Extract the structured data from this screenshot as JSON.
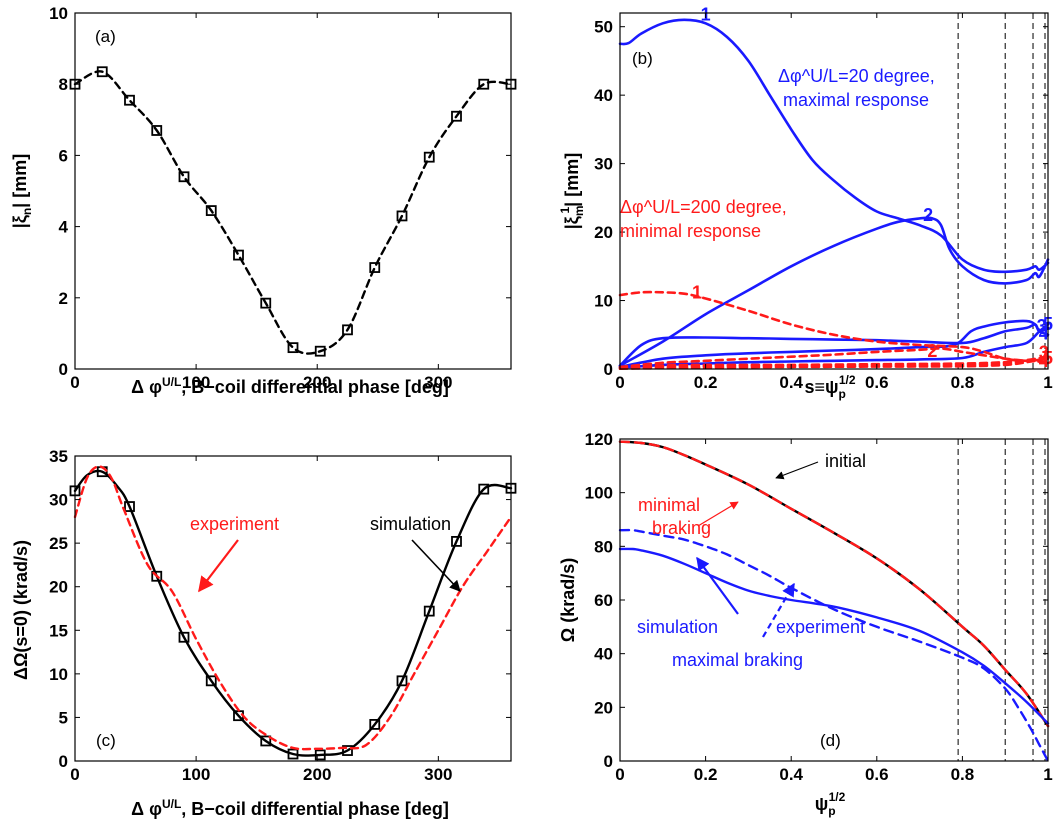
{
  "colors": {
    "blue": "#1a1aff",
    "red": "#ff1a1a",
    "black": "#000000"
  },
  "chart_data": [
    {
      "id": "a",
      "type": "line",
      "panel_label": "(a)",
      "xlabel": "Δ φ^U/L, B−coil differential phase [deg]",
      "xlabel_parts": {
        "prefix": "Δ φ",
        "sup": "U/L",
        "suffix": ", B−coil differential phase [deg]"
      },
      "ylabel": "|ξn| [mm]",
      "ylabel_parts": {
        "prefix": "|ξ",
        "sub": "n",
        "suffix": "| [mm]"
      },
      "xlim": [
        0,
        360
      ],
      "ylim": [
        0,
        10
      ],
      "xticks": [
        0,
        100,
        200,
        300
      ],
      "yticks": [
        0,
        2,
        4,
        6,
        8,
        10
      ],
      "grid": false,
      "series": [
        {
          "line": "dashed",
          "color": "#000000",
          "marker": "square",
          "x": [
            0,
            22.5,
            45,
            67.5,
            90,
            112.5,
            135,
            157.5,
            180,
            202.5,
            225,
            247.5,
            270,
            292.5,
            315,
            337.5,
            360
          ],
          "y": [
            8.0,
            8.35,
            7.55,
            6.7,
            5.4,
            4.45,
            3.2,
            1.85,
            0.6,
            0.5,
            1.1,
            2.85,
            4.3,
            5.95,
            7.1,
            8.0,
            8.0
          ],
          "marker_x": [
            0,
            22.5,
            45,
            67.5,
            90,
            112.5,
            135,
            157.5,
            180,
            202.5,
            225,
            247.5,
            270,
            292.5,
            315,
            337.5,
            360
          ]
        }
      ]
    },
    {
      "id": "b",
      "type": "line",
      "panel_label": "(b)",
      "xlabel": "s≡ψp^1/2",
      "xlabel_parts": {
        "prefix": "s≡ψ",
        "sub": "p",
        "sup": "1/2"
      },
      "ylabel": "|ξ1m| [mm]",
      "ylabel_parts": {
        "prefix": "|ξ",
        "sub": "m",
        "sup": "1",
        "suffix": "| [mm]"
      },
      "xlim": [
        0,
        1
      ],
      "ylim": [
        0,
        52
      ],
      "xticks": [
        0,
        0.2,
        0.4,
        0.6,
        0.8,
        1
      ],
      "xticklabels": [
        "0",
        "0.2",
        "0.4",
        "0.6",
        "0.8",
        "1"
      ],
      "yticks": [
        0,
        10,
        20,
        30,
        40,
        50
      ],
      "vlines": [
        0.79,
        0.9,
        0.965,
        0.993
      ],
      "grid": false,
      "series": [
        {
          "label": "1",
          "color": "#1a1aff",
          "line": "solid",
          "x": [
            0,
            0.02,
            0.05,
            0.1,
            0.15,
            0.2,
            0.25,
            0.3,
            0.35,
            0.4,
            0.45,
            0.5,
            0.55,
            0.6,
            0.65,
            0.7,
            0.75,
            0.8,
            0.85,
            0.9,
            0.95,
            0.97,
            0.98,
            1.0
          ],
          "y": [
            47.5,
            47.6,
            49,
            50.5,
            51,
            50.5,
            48.5,
            45,
            40,
            35,
            30.5,
            27.5,
            25,
            23,
            22,
            21,
            19.5,
            16,
            14.5,
            14.2,
            14.5,
            15,
            14.5,
            15.5
          ]
        },
        {
          "label": "2",
          "color": "#1a1aff",
          "line": "solid",
          "x": [
            0,
            0.1,
            0.2,
            0.3,
            0.4,
            0.5,
            0.6,
            0.65,
            0.7,
            0.73,
            0.75,
            0.77,
            0.8,
            0.85,
            0.9,
            0.95,
            0.97,
            0.98,
            1.0
          ],
          "y": [
            0.5,
            4,
            8,
            11.5,
            15,
            18,
            20.5,
            21.5,
            22,
            22,
            21,
            17.5,
            15,
            13,
            12.5,
            13,
            14,
            13.5,
            16
          ]
        },
        {
          "label": "3",
          "color": "#1a1aff",
          "line": "solid",
          "x": [
            0,
            0.05,
            0.1,
            0.2,
            0.3,
            0.4,
            0.5,
            0.6,
            0.7,
            0.8,
            0.85,
            0.9,
            0.95,
            0.97,
            0.98,
            1.0
          ],
          "y": [
            0.5,
            3.5,
            4.5,
            4.6,
            4.5,
            4.4,
            4.3,
            4.2,
            4.0,
            3.8,
            4.5,
            5.5,
            6.0,
            6.5,
            5.5,
            6.0
          ]
        },
        {
          "label": "4",
          "color": "#1a1aff",
          "line": "solid",
          "x": [
            0,
            0.1,
            0.2,
            0.3,
            0.4,
            0.5,
            0.6,
            0.7,
            0.78,
            0.82,
            0.85,
            0.9,
            0.95,
            0.97,
            0.98,
            1.0
          ],
          "y": [
            0.3,
            1.5,
            2.0,
            2.3,
            2.5,
            2.7,
            2.9,
            3.2,
            3.5,
            5.5,
            6.2,
            6.8,
            7.0,
            6.5,
            5.5,
            5.0
          ]
        },
        {
          "label": "5",
          "color": "#1a1aff",
          "line": "solid",
          "x": [
            0,
            0.1,
            0.2,
            0.3,
            0.4,
            0.5,
            0.6,
            0.7,
            0.8,
            0.85,
            0.9,
            0.95,
            0.98,
            1.0
          ],
          "y": [
            0.2,
            0.6,
            0.8,
            1.0,
            1.1,
            1.2,
            1.3,
            1.4,
            1.6,
            2.5,
            3.2,
            3.8,
            5.5,
            6.5
          ]
        },
        {
          "label": "1",
          "color": "#ff1a1a",
          "line": "dashed",
          "x": [
            0,
            0.05,
            0.1,
            0.15,
            0.2,
            0.3,
            0.4,
            0.5,
            0.6,
            0.7,
            0.8,
            0.85,
            0.9,
            0.95,
            1.0
          ],
          "y": [
            10.8,
            11.2,
            11.2,
            11,
            10.3,
            8.5,
            6.5,
            5.0,
            4.0,
            3.5,
            3.2,
            2.5,
            1.5,
            1.2,
            1.5
          ]
        },
        {
          "label": "2",
          "color": "#ff1a1a",
          "line": "dashed",
          "x": [
            0,
            0.1,
            0.2,
            0.3,
            0.4,
            0.5,
            0.6,
            0.7,
            0.75,
            0.8,
            0.85,
            0.9,
            0.95,
            1.0
          ],
          "y": [
            0.3,
            0.9,
            1.2,
            1.5,
            1.8,
            2.1,
            2.5,
            2.8,
            3.0,
            2.5,
            2.0,
            1.5,
            1.2,
            1.0
          ]
        },
        {
          "label": "3",
          "color": "#ff1a1a",
          "line": "dashed",
          "x": [
            0,
            0.1,
            0.2,
            0.4,
            0.6,
            0.8,
            0.9,
            0.95,
            1.0
          ],
          "y": [
            0.2,
            0.5,
            0.6,
            0.6,
            0.7,
            0.8,
            1.0,
            1.3,
            1.8
          ]
        },
        {
          "label": "4",
          "color": "#ff1a1a",
          "line": "dashed",
          "x": [
            0,
            0.1,
            0.2,
            0.4,
            0.6,
            0.8,
            0.9,
            0.95,
            1.0
          ],
          "y": [
            0.1,
            0.3,
            0.4,
            0.5,
            0.5,
            0.6,
            0.8,
            1.2,
            1.5
          ]
        },
        {
          "label": "5",
          "color": "#ff1a1a",
          "line": "dashed",
          "x": [
            0,
            0.2,
            0.4,
            0.6,
            0.8,
            0.9,
            0.95,
            1.0
          ],
          "y": [
            0.05,
            0.2,
            0.3,
            0.35,
            0.4,
            0.6,
            1.0,
            1.6
          ]
        }
      ],
      "annotations": [
        {
          "lines": [
            "Δφ^U/L=20 degree,",
            "maximal response"
          ],
          "color": "#1a1aff"
        },
        {
          "lines": [
            "Δφ^U/L=200 degree,",
            "minimal response"
          ],
          "color": "#ff1a1a"
        }
      ]
    },
    {
      "id": "c",
      "type": "line",
      "panel_label": "(c)",
      "xlabel": "Δ φ^U/L, B−coil differential phase [deg]",
      "xlabel_parts": {
        "prefix": "Δ φ",
        "sup": "U/L",
        "suffix": ", B−coil differential phase [deg]"
      },
      "ylabel": "ΔΩ(s=0) (krad/s)",
      "xlim": [
        0,
        360
      ],
      "ylim": [
        0,
        35
      ],
      "xticks": [
        0,
        100,
        200,
        300
      ],
      "yticks": [
        0,
        5,
        10,
        15,
        20,
        25,
        30,
        35
      ],
      "grid": false,
      "series": [
        {
          "name": "simulation",
          "color": "#000000",
          "line": "solid",
          "marker": "square",
          "x": [
            0,
            10,
            22.5,
            35,
            45,
            67.5,
            90,
            112.5,
            135,
            157.5,
            180,
            202.5,
            225,
            247.5,
            270,
            292.5,
            315,
            337.5,
            360
          ],
          "y": [
            31,
            32.8,
            33.2,
            31.5,
            29.2,
            21.2,
            14.2,
            9.2,
            5.2,
            2.3,
            0.8,
            0.7,
            1.2,
            4.2,
            9.2,
            17.2,
            25.2,
            31.2,
            31.3
          ],
          "marker_x": [
            0,
            22.5,
            45,
            67.5,
            90,
            112.5,
            135,
            157.5,
            180,
            202.5,
            225,
            247.5,
            270,
            292.5,
            315,
            337.5,
            360
          ]
        },
        {
          "name": "experiment",
          "color": "#ff1a1a",
          "line": "dashed",
          "x": [
            0,
            10,
            20,
            30,
            40,
            60,
            80,
            100,
            120,
            140,
            160,
            180,
            200,
            220,
            240,
            260,
            280,
            300,
            320,
            340,
            360
          ],
          "y": [
            28,
            32.5,
            33.8,
            32.5,
            29,
            22.5,
            19.5,
            14,
            9,
            5,
            2.8,
            1.5,
            1.4,
            1.5,
            1.8,
            5,
            10,
            15,
            20,
            24,
            28
          ]
        }
      ],
      "annotations": [
        {
          "text": "experiment",
          "color": "#ff1a1a"
        },
        {
          "text": "simulation",
          "color": "#000000"
        }
      ]
    },
    {
      "id": "d",
      "type": "line",
      "panel_label": "(d)",
      "xlabel": "ψp^1/2",
      "xlabel_parts": {
        "prefix": "ψ",
        "sub": "p",
        "sup": "1/2"
      },
      "ylabel": "Ω (krad/s)",
      "xlim": [
        0,
        1
      ],
      "ylim": [
        0,
        120
      ],
      "xticks": [
        0,
        0.2,
        0.4,
        0.6,
        0.8,
        1
      ],
      "xticklabels": [
        "0",
        "0.2",
        "0.4",
        "0.6",
        "0.8",
        "1"
      ],
      "yticks": [
        0,
        20,
        40,
        60,
        80,
        100,
        120
      ],
      "vlines": [
        0.79,
        0.9,
        0.965,
        0.993
      ],
      "grid": false,
      "series": [
        {
          "name": "initial",
          "color": "#000000",
          "line": "solid",
          "x": [
            0,
            0.05,
            0.1,
            0.15,
            0.2,
            0.3,
            0.4,
            0.5,
            0.6,
            0.7,
            0.8,
            0.85,
            0.9,
            0.95,
            1.0
          ],
          "y": [
            119,
            118.5,
            117,
            114,
            110.5,
            103,
            94,
            85,
            75.5,
            64,
            50,
            43,
            34,
            25,
            13
          ]
        },
        {
          "name": "minimal braking",
          "color": "#ff1a1a",
          "line": "dashed",
          "x": [
            0,
            0.05,
            0.1,
            0.15,
            0.2,
            0.3,
            0.4,
            0.5,
            0.6,
            0.7,
            0.8,
            0.85,
            0.9,
            0.95,
            1.0
          ],
          "y": [
            119,
            118.5,
            117,
            114,
            110.5,
            103,
            94,
            85,
            75.5,
            64,
            50,
            43,
            34,
            25,
            13
          ]
        },
        {
          "name": "simulation",
          "color": "#1a1aff",
          "line": "solid",
          "x": [
            0,
            0.03,
            0.05,
            0.1,
            0.15,
            0.2,
            0.25,
            0.3,
            0.35,
            0.4,
            0.5,
            0.6,
            0.7,
            0.8,
            0.85,
            0.9,
            0.95,
            1.0
          ],
          "y": [
            79,
            79,
            78.5,
            76.5,
            73.5,
            70,
            66.5,
            63.5,
            61.5,
            60,
            57.5,
            53.5,
            48.5,
            40.5,
            35.5,
            29,
            22,
            14
          ]
        },
        {
          "name": "experiment",
          "color": "#1a1aff",
          "line": "dashed",
          "x": [
            0,
            0.03,
            0.05,
            0.1,
            0.15,
            0.2,
            0.25,
            0.3,
            0.35,
            0.4,
            0.5,
            0.6,
            0.7,
            0.8,
            0.85,
            0.9,
            0.93,
            0.96,
            0.98,
            1.0
          ],
          "y": [
            86,
            86,
            85.5,
            84,
            82.5,
            80,
            77,
            73,
            69,
            64.5,
            56.5,
            50,
            44.5,
            38.5,
            34.5,
            27,
            20,
            12,
            6,
            0
          ]
        }
      ],
      "annotations": [
        {
          "text": "initial",
          "color": "#000000"
        },
        {
          "lines": [
            "minimal",
            "braking"
          ],
          "color": "#ff1a1a"
        },
        {
          "text": "simulation",
          "color": "#1a1aff"
        },
        {
          "text": "experiment",
          "color": "#1a1aff"
        },
        {
          "text": "maximal braking",
          "color": "#1a1aff"
        }
      ]
    }
  ]
}
